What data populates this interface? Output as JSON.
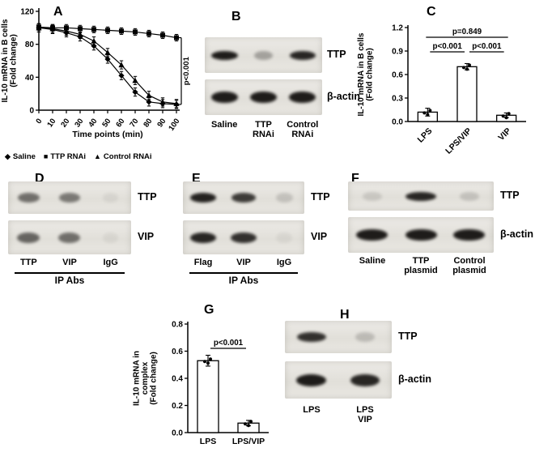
{
  "panels": {
    "A": {
      "letter": "A"
    },
    "B": {
      "letter": "B"
    },
    "C": {
      "letter": "C"
    },
    "D": {
      "letter": "D"
    },
    "E": {
      "letter": "E"
    },
    "F": {
      "letter": "F"
    },
    "G": {
      "letter": "G"
    },
    "H": {
      "letter": "H"
    }
  },
  "chart_data": [
    {
      "id": "A",
      "type": "line",
      "title": "",
      "xlabel": "Time points (min)",
      "ylabel": "IL-10 mRNA in B cells\n(Fold change)",
      "x": [
        0,
        10,
        20,
        30,
        40,
        50,
        60,
        70,
        80,
        90,
        100
      ],
      "ylim": [
        0,
        120
      ],
      "yticks": [
        0,
        40,
        80,
        120
      ],
      "series": [
        {
          "name": "Saline",
          "marker": "diamond",
          "values": [
            100,
            98,
            94,
            89,
            78,
            62,
            42,
            22,
            10,
            8,
            7
          ],
          "error": 5
        },
        {
          "name": "TTP RNAi",
          "marker": "square",
          "values": [
            101,
            100,
            100,
            99,
            98,
            97,
            96,
            95,
            93,
            91,
            88
          ],
          "error": 4
        },
        {
          "name": "Control RNAi",
          "marker": "triangle",
          "values": [
            100,
            99,
            96,
            92,
            84,
            70,
            55,
            36,
            18,
            10,
            8
          ],
          "error": 5
        }
      ],
      "annotation": "p<0.001",
      "legend_position": "bottom",
      "grid": false
    },
    {
      "id": "C",
      "type": "bar",
      "title": "",
      "xlabel": "",
      "ylabel": "IL-10 mRNA in B cells\n(Fold change)",
      "categories": [
        "LPS",
        "LPS/VIP",
        "VIP"
      ],
      "values": [
        0.12,
        0.7,
        0.08
      ],
      "errors": [
        0.05,
        0.04,
        0.03
      ],
      "ylim": [
        0,
        1.2
      ],
      "yticks": [
        0.0,
        0.3,
        0.6,
        0.9,
        1.2
      ],
      "significance": [
        {
          "from": 0,
          "to": 1,
          "label": "p<0.001",
          "level": 1
        },
        {
          "from": 1,
          "to": 2,
          "label": "p<0.001",
          "level": 1
        },
        {
          "from": 0,
          "to": 2,
          "label": "p=0.849",
          "level": 2
        }
      ],
      "grid": false
    },
    {
      "id": "G",
      "type": "bar",
      "title": "",
      "xlabel": "",
      "ylabel": "IL-10 mRNA in\ncomplex\n(Fold change)",
      "categories": [
        "LPS",
        "LPS/VIP"
      ],
      "values": [
        0.53,
        0.07
      ],
      "errors": [
        0.04,
        0.02
      ],
      "ylim": [
        0,
        0.8
      ],
      "yticks": [
        0.0,
        0.2,
        0.4,
        0.6,
        0.8
      ],
      "significance": [
        {
          "from": 0,
          "to": 1,
          "label": "p<0.001",
          "level": 1
        }
      ],
      "grid": false
    }
  ],
  "blots": {
    "B": {
      "rows": [
        {
          "label": "TTP",
          "bands": [
            0.95,
            0.3,
            0.9
          ]
        },
        {
          "label": "β-actin",
          "bands": [
            0.95,
            0.95,
            0.95
          ]
        }
      ],
      "lanes": [
        "Saline",
        "TTP\nRNAi",
        "Control\nRNAi"
      ]
    },
    "D": {
      "rows": [
        {
          "label": "TTP",
          "bands": [
            0.55,
            0.5,
            0.06
          ]
        },
        {
          "label": "VIP",
          "bands": [
            0.6,
            0.55,
            0.05
          ]
        }
      ],
      "lanes": [
        "TTP",
        "VIP",
        "IgG"
      ],
      "footer": "IP Abs"
    },
    "E": {
      "rows": [
        {
          "label": "TTP",
          "bands": [
            0.92,
            0.8,
            0.15
          ]
        },
        {
          "label": "VIP",
          "bands": [
            0.9,
            0.85,
            0.05
          ]
        }
      ],
      "lanes": [
        "Flag",
        "VIP",
        "IgG"
      ],
      "footer": "IP Abs"
    },
    "F": {
      "rows": [
        {
          "label": "TTP",
          "bands": [
            0.12,
            0.9,
            0.15
          ]
        },
        {
          "label": "β-actin",
          "bands": [
            0.95,
            0.95,
            0.95
          ]
        }
      ],
      "lanes": [
        "Saline",
        "TTP\nplasmid",
        "Control\nplasmid"
      ]
    },
    "H": {
      "rows": [
        {
          "label": "TTP",
          "bands": [
            0.85,
            0.18
          ]
        },
        {
          "label": "β-actin",
          "bands": [
            0.95,
            0.9
          ]
        }
      ],
      "lanes": [
        "LPS",
        "LPS\nVIP"
      ]
    }
  },
  "colors": {
    "ink": "#000000",
    "strip": "#e6e4df",
    "band": "#141210",
    "background": "#ffffff"
  }
}
